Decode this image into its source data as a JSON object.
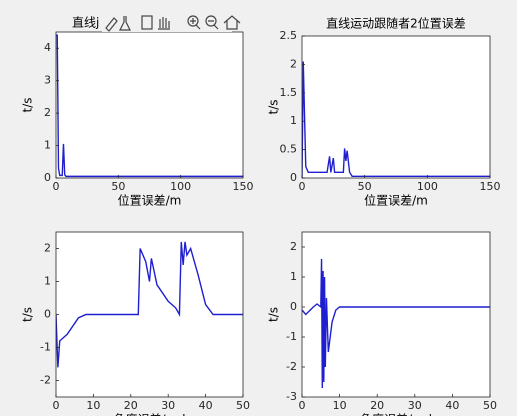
{
  "chart_data": [
    {
      "type": "line",
      "title": "直线j",
      "xlabel": "位置误差/m",
      "ylabel": "t/s",
      "xlim": [
        0,
        150
      ],
      "xticks": [
        0,
        50,
        100,
        150
      ],
      "ylim": [
        0,
        4.5
      ],
      "yticks": [
        0,
        1,
        2,
        3,
        4
      ],
      "series": [
        {
          "color": "#1f1fd1",
          "x": [
            0,
            1,
            2,
            3,
            5,
            6,
            7,
            8,
            150
          ],
          "values": [
            4.4,
            4.4,
            0.3,
            0.08,
            0.08,
            1.05,
            0.1,
            0.05,
            0.05
          ]
        }
      ]
    },
    {
      "type": "line",
      "title": "直线运动跟随者2位置误差",
      "xlabel": "位置误差/m",
      "ylabel": "t/s",
      "xlim": [
        0,
        150
      ],
      "xticks": [
        0,
        50,
        100,
        150
      ],
      "ylim": [
        0,
        2.5
      ],
      "yticks": [
        0,
        0.5,
        1,
        1.5,
        2,
        2.5
      ],
      "series": [
        {
          "color": "#1f1fd1",
          "x": [
            0,
            1,
            3,
            5,
            20,
            22,
            23,
            25,
            26,
            33,
            34,
            35,
            36,
            38,
            40,
            150
          ],
          "values": [
            0,
            2.05,
            0.2,
            0.1,
            0.1,
            0.38,
            0.1,
            0.35,
            0.1,
            0.1,
            0.52,
            0.3,
            0.48,
            0.1,
            0.03,
            0.03
          ]
        }
      ]
    },
    {
      "type": "line",
      "xlabel": "角度误差/rad",
      "ylabel": "t/s",
      "xlim": [
        0,
        50
      ],
      "xticks": [
        0,
        10,
        20,
        30,
        40,
        50
      ],
      "ylim": [
        -2.5,
        2.5
      ],
      "yticks": [
        -2,
        -1,
        0,
        1,
        2
      ],
      "series": [
        {
          "color": "#1f1fd1",
          "x": [
            0,
            0.5,
            1,
            3,
            6,
            8,
            22,
            22.5,
            24,
            25,
            25.5,
            27,
            30,
            32,
            33,
            33.5,
            34,
            34.5,
            35,
            36,
            38,
            40,
            42,
            50
          ],
          "values": [
            0,
            -1.6,
            -0.8,
            -0.6,
            -0.1,
            0,
            0,
            2.0,
            1.6,
            1.0,
            1.7,
            0.9,
            0.4,
            0.2,
            0,
            2.2,
            1.5,
            2.2,
            1.8,
            2.0,
            1.2,
            0.3,
            0,
            0
          ]
        }
      ]
    },
    {
      "type": "line",
      "xlabel": "角度误差/rad",
      "ylabel": "t/s",
      "xlim": [
        0,
        50
      ],
      "xticks": [
        0,
        10,
        20,
        30,
        40,
        50
      ],
      "ylim": [
        -3,
        2.5
      ],
      "yticks": [
        -3,
        -2,
        -1,
        0,
        1,
        2
      ],
      "series": [
        {
          "color": "#1f1fd1",
          "x": [
            0,
            1,
            3,
            4,
            5,
            5.2,
            5.4,
            5.6,
            5.8,
            6,
            6.2,
            6.5,
            7,
            8,
            9,
            10,
            50
          ],
          "values": [
            -0.1,
            -0.25,
            0,
            0.1,
            0,
            1.6,
            -2.7,
            1.2,
            -2.5,
            1.0,
            -2.0,
            0.3,
            -1.5,
            -0.5,
            -0.1,
            0,
            0
          ]
        }
      ]
    }
  ]
}
